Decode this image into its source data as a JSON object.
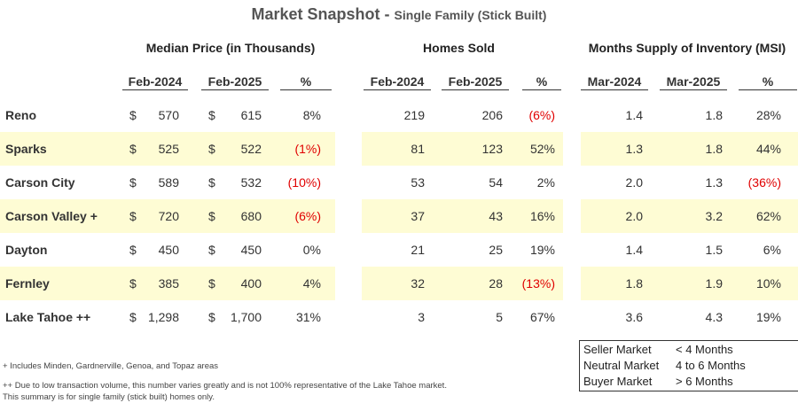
{
  "title": {
    "main": "Market Snapshot - ",
    "sub": "Single Family (Stick Built)"
  },
  "groups": {
    "median": "Median Price (in Thousands)",
    "sold": "Homes Sold",
    "msi": "Months Supply of Inventory (MSI)"
  },
  "headers": {
    "median": [
      "Feb-2024",
      "Feb-2025",
      "%"
    ],
    "sold": [
      "Feb-2024",
      "Feb-2025",
      "%"
    ],
    "msi": [
      "Mar-2024",
      "Mar-2025",
      "%"
    ]
  },
  "currency": "$",
  "rows": [
    {
      "name": "Reno",
      "p1": "570",
      "p2": "615",
      "pp": "8%",
      "ppNeg": false,
      "s1": "219",
      "s2": "206",
      "sp": "(6%)",
      "spNeg": true,
      "m1": "1.4",
      "m2": "1.8",
      "mp": "28%",
      "mpNeg": false,
      "shaded": false
    },
    {
      "name": "Sparks",
      "p1": "525",
      "p2": "522",
      "pp": "(1%)",
      "ppNeg": true,
      "s1": "81",
      "s2": "123",
      "sp": "52%",
      "spNeg": false,
      "m1": "1.3",
      "m2": "1.8",
      "mp": "44%",
      "mpNeg": false,
      "shaded": true
    },
    {
      "name": "Carson City",
      "p1": "589",
      "p2": "532",
      "pp": "(10%)",
      "ppNeg": true,
      "s1": "53",
      "s2": "54",
      "sp": "2%",
      "spNeg": false,
      "m1": "2.0",
      "m2": "1.3",
      "mp": "(36%)",
      "mpNeg": true,
      "shaded": false
    },
    {
      "name": "Carson Valley +",
      "p1": "720",
      "p2": "680",
      "pp": "(6%)",
      "ppNeg": true,
      "s1": "37",
      "s2": "43",
      "sp": "16%",
      "spNeg": false,
      "m1": "2.0",
      "m2": "3.2",
      "mp": "62%",
      "mpNeg": false,
      "shaded": true
    },
    {
      "name": "Dayton",
      "p1": "450",
      "p2": "450",
      "pp": "0%",
      "ppNeg": false,
      "s1": "21",
      "s2": "25",
      "sp": "19%",
      "spNeg": false,
      "m1": "1.4",
      "m2": "1.5",
      "mp": "6%",
      "mpNeg": false,
      "shaded": false
    },
    {
      "name": "Fernley",
      "p1": "385",
      "p2": "400",
      "pp": "4%",
      "ppNeg": false,
      "s1": "32",
      "s2": "28",
      "sp": "(13%)",
      "spNeg": true,
      "m1": "1.8",
      "m2": "1.9",
      "mp": "10%",
      "mpNeg": false,
      "shaded": true
    },
    {
      "name": "Lake Tahoe ++",
      "p1": "1,298",
      "p2": "1,700",
      "pp": "31%",
      "ppNeg": false,
      "s1": "3",
      "s2": "5",
      "sp": "67%",
      "spNeg": false,
      "m1": "3.6",
      "m2": "4.3",
      "mp": "19%",
      "mpNeg": false,
      "shaded": false
    }
  ],
  "footnotes": [
    "+ Includes Minden, Gardnerville, Genoa, and Topaz areas",
    "++ Due to low transaction volume, this number varies greatly and is not 100% representative of the Lake Tahoe market.",
    "This summary is for single family (stick built) homes only."
  ],
  "legend": [
    {
      "label": "Seller Market",
      "value": "< 4 Months"
    },
    {
      "label": "Neutral Market",
      "value": "4 to 6 Months"
    },
    {
      "label": "Buyer Market",
      "value": "> 6  Months"
    }
  ],
  "colors": {
    "negative": "#e00000",
    "band": "#fefcd4"
  }
}
